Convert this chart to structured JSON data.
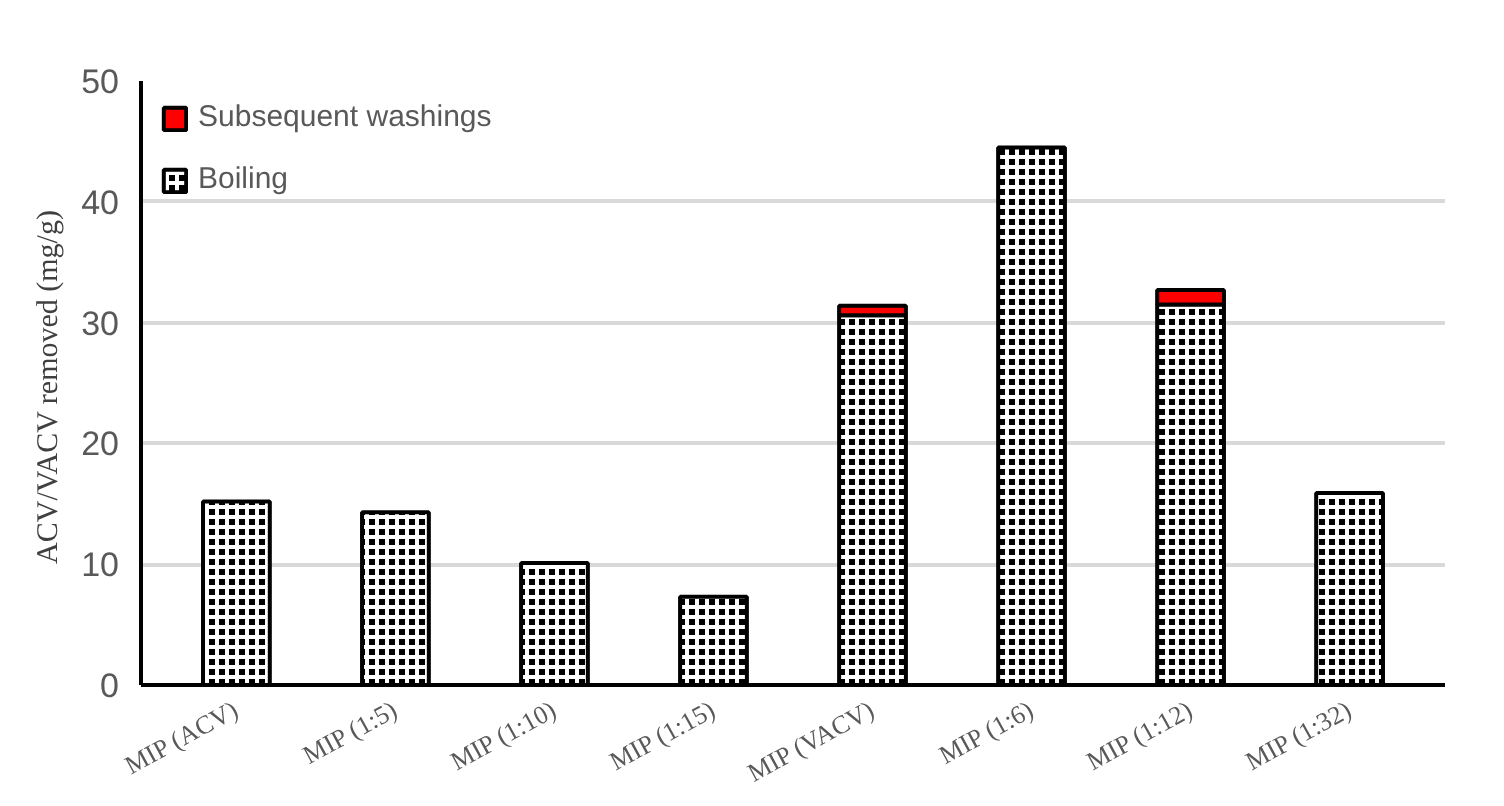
{
  "chart_data": {
    "type": "bar",
    "stacked": true,
    "ylabel": "ACV/VACV  removed (mg/g)",
    "categories": [
      "MIP (ACV)",
      "MIP (1:5)",
      "MIP (1:10)",
      "MIP (1:15)",
      "MIP (VACV)",
      "MIP (1:6)",
      "MIP (1:12)",
      "MIP (1:32)"
    ],
    "series": [
      {
        "name": "Boiling",
        "color": "#000000",
        "values": [
          15.2,
          14.3,
          10.1,
          7.3,
          30.6,
          44.5,
          31.5,
          15.9
        ]
      },
      {
        "name": "Subsequent washings",
        "color": "#ff0000",
        "values": [
          0,
          0,
          0,
          0,
          0.8,
          0,
          1.2,
          0
        ]
      }
    ],
    "ylim": [
      0,
      50
    ],
    "yticks": [
      0,
      10,
      20,
      30,
      40,
      50
    ],
    "grid": "y",
    "legend": "top left"
  }
}
